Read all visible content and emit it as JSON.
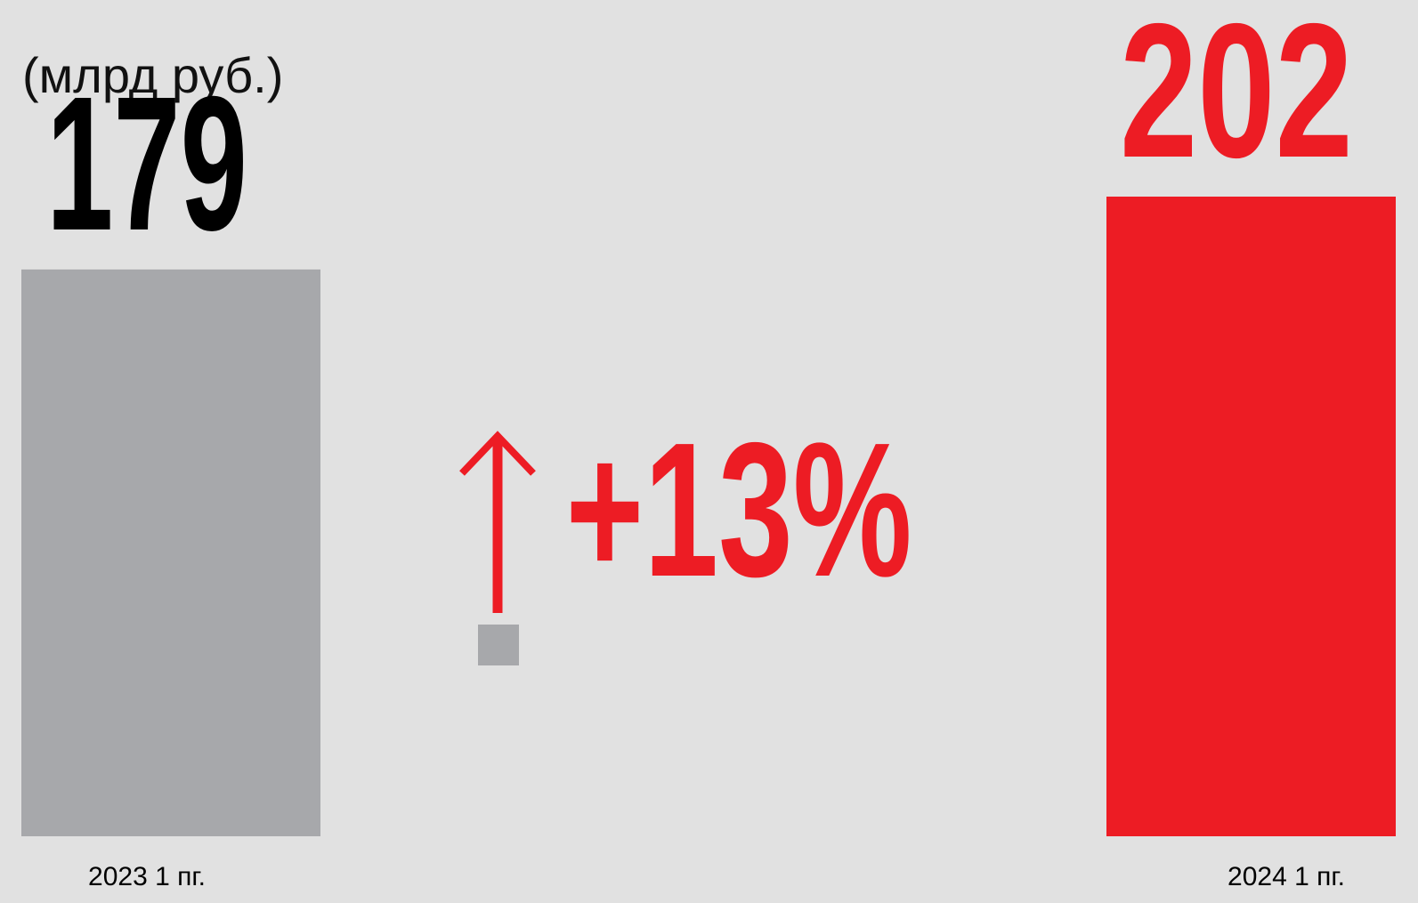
{
  "chart_data": {
    "type": "bar",
    "subtitle": "(млрд руб.)",
    "categories": [
      "2023 1 пг.",
      "2024 1 пг."
    ],
    "values": [
      179,
      202
    ],
    "colors": [
      "#a7a8ab",
      "#ed1c24"
    ],
    "label_colors": [
      "#000000",
      "#ed1c24"
    ],
    "annotation": "+13%",
    "annotation_color": "#ed1c24"
  }
}
